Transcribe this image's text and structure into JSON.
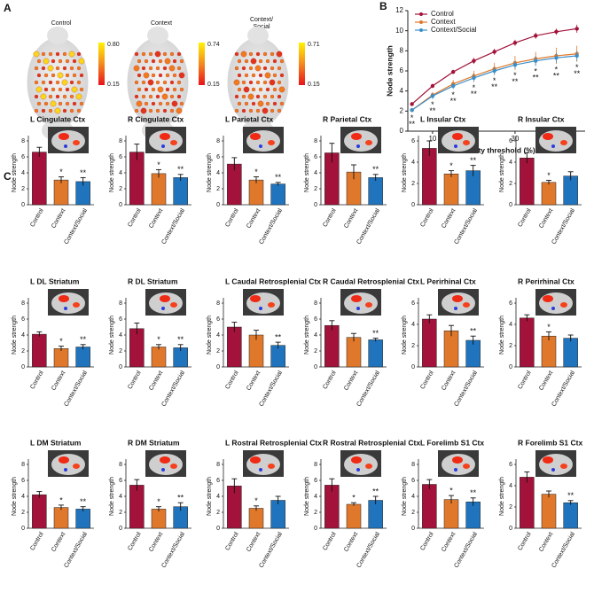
{
  "panel_labels": [
    "A",
    "B",
    "C"
  ],
  "brain_maps": [
    {
      "title_lines": [
        "Control"
      ],
      "max": "0.80",
      "min": "0.15"
    },
    {
      "title_lines": [
        "Context"
      ],
      "max": "0.74",
      "min": "0.15"
    },
    {
      "title_lines": [
        "Context/",
        "Social"
      ],
      "max": "0.71",
      "min": "0.15"
    }
  ],
  "chart_data": [
    {
      "type": "line",
      "xlabel": "Density threshold (%)",
      "ylabel": "Node strength",
      "x": [
        5,
        10,
        15,
        20,
        25,
        30,
        35,
        40,
        45
      ],
      "xlim": [
        4,
        47
      ],
      "xticks": [
        10,
        20,
        30,
        40
      ],
      "ylim": [
        0,
        12
      ],
      "yticks": [
        0,
        2,
        4,
        6,
        8,
        10,
        12
      ],
      "legend": "upper left",
      "series": [
        {
          "name": "Control",
          "color": "#a3123a",
          "values": [
            2.7,
            4.5,
            5.9,
            7.0,
            7.9,
            8.8,
            9.5,
            9.9,
            10.2
          ],
          "errors": [
            0.2,
            0.2,
            0.2,
            0.3,
            0.3,
            0.3,
            0.3,
            0.3,
            0.4
          ]
        },
        {
          "name": "Context",
          "color": "#e0782b",
          "values": [
            2.1,
            3.6,
            4.7,
            5.5,
            6.2,
            6.8,
            7.2,
            7.5,
            7.7
          ],
          "errors": [
            0.2,
            0.3,
            0.4,
            0.5,
            0.6,
            0.7,
            0.7,
            0.8,
            0.8
          ]
        },
        {
          "name": "Context/Social",
          "color": "#3a8fc8",
          "values": [
            2.1,
            3.5,
            4.5,
            5.3,
            6.0,
            6.6,
            7.0,
            7.3,
            7.5
          ],
          "errors": [
            0.2,
            0.3,
            0.3,
            0.4,
            0.4,
            0.4,
            0.5,
            0.5,
            0.5
          ]
        }
      ],
      "annotations": [
        {
          "x": 5,
          "lines": [
            "*",
            "**"
          ]
        },
        {
          "x": 10,
          "lines": [
            "*",
            "**"
          ]
        },
        {
          "x": 15,
          "lines": [
            "*",
            "**"
          ]
        },
        {
          "x": 20,
          "lines": [
            "*",
            "**"
          ]
        },
        {
          "x": 25,
          "lines": [
            "*",
            "**"
          ]
        },
        {
          "x": 30,
          "lines": [
            "*",
            "**"
          ]
        },
        {
          "x": 35,
          "lines": [
            "*",
            "**"
          ]
        },
        {
          "x": 40,
          "lines": [
            "*",
            "**"
          ]
        },
        {
          "x": 45,
          "lines": [
            "*",
            "**"
          ]
        }
      ]
    },
    {
      "type": "bar",
      "title": "L Cingulate Ctx",
      "ylabel": "Node strength",
      "categories": [
        "Control",
        "Context",
        "Context/Social"
      ],
      "colors": [
        "#a3123a",
        "#e0782b",
        "#1f74bd"
      ],
      "values": [
        6.6,
        3.1,
        2.9
      ],
      "errors": [
        0.6,
        0.4,
        0.5
      ],
      "annotations": [
        null,
        "*",
        "**"
      ],
      "ylim": [
        0,
        8
      ],
      "yticks": [
        0,
        2,
        4,
        6,
        8
      ]
    },
    {
      "type": "bar",
      "title": "R Cingulate Ctx",
      "ylabel": "Node strength",
      "categories": [
        "Control",
        "Context",
        "Context/Social"
      ],
      "colors": [
        "#a3123a",
        "#e0782b",
        "#1f74bd"
      ],
      "values": [
        6.6,
        3.9,
        3.4
      ],
      "errors": [
        1.0,
        0.5,
        0.4
      ],
      "annotations": [
        null,
        "*",
        "**"
      ],
      "ylim": [
        0,
        8
      ],
      "yticks": [
        0,
        2,
        4,
        6,
        8
      ]
    },
    {
      "type": "bar",
      "title": "L Parietal Ctx",
      "ylabel": "Node strength",
      "categories": [
        "Control",
        "Context",
        "Context/Social"
      ],
      "colors": [
        "#a3123a",
        "#e0782b",
        "#1f74bd"
      ],
      "values": [
        5.1,
        3.1,
        2.6
      ],
      "errors": [
        0.8,
        0.4,
        0.2
      ],
      "annotations": [
        null,
        "*",
        "**"
      ],
      "ylim": [
        0,
        8
      ],
      "yticks": [
        0,
        2,
        4,
        6,
        8
      ]
    },
    {
      "type": "bar",
      "title": "R Parietal Ctx",
      "ylabel": "Node strength",
      "categories": [
        "Control",
        "Context",
        "Context/Social"
      ],
      "colors": [
        "#a3123a",
        "#e0782b",
        "#1f74bd"
      ],
      "values": [
        6.5,
        4.1,
        3.4
      ],
      "errors": [
        1.2,
        0.9,
        0.4
      ],
      "annotations": [
        null,
        null,
        "**"
      ],
      "ylim": [
        0,
        8
      ],
      "yticks": [
        0,
        2,
        4,
        6,
        8
      ]
    },
    {
      "type": "bar",
      "title": "L Insular Ctx",
      "ylabel": "Node strength",
      "categories": [
        "Control",
        "Context",
        "Context/Social"
      ],
      "colors": [
        "#a3123a",
        "#e0782b",
        "#1f74bd"
      ],
      "values": [
        5.3,
        2.9,
        3.2
      ],
      "errors": [
        0.7,
        0.3,
        0.5
      ],
      "annotations": [
        null,
        "*",
        "**"
      ],
      "ylim": [
        0,
        6
      ],
      "yticks": [
        0,
        2,
        4,
        6
      ]
    },
    {
      "type": "bar",
      "title": "R Insular Ctx",
      "ylabel": "Node strength",
      "categories": [
        "Control",
        "Context",
        "Context/Social"
      ],
      "colors": [
        "#a3123a",
        "#e0782b",
        "#1f74bd"
      ],
      "values": [
        4.4,
        2.1,
        2.7
      ],
      "errors": [
        0.5,
        0.2,
        0.4
      ],
      "annotations": [
        null,
        "*",
        null
      ],
      "ylim": [
        0,
        6
      ],
      "yticks": [
        0,
        2,
        4,
        6
      ]
    },
    {
      "type": "bar",
      "title": "L DL Striatum",
      "ylabel": "Node strength",
      "categories": [
        "Control",
        "Context",
        "Context/Social"
      ],
      "colors": [
        "#a3123a",
        "#e0782b",
        "#1f74bd"
      ],
      "values": [
        4.1,
        2.3,
        2.5
      ],
      "errors": [
        0.3,
        0.3,
        0.3
      ],
      "annotations": [
        null,
        "*",
        "**"
      ],
      "ylim": [
        0,
        8
      ],
      "yticks": [
        0,
        2,
        4,
        6,
        8
      ]
    },
    {
      "type": "bar",
      "title": "R DL Striatum",
      "ylabel": "Node strength",
      "categories": [
        "Control",
        "Context",
        "Context/Social"
      ],
      "colors": [
        "#a3123a",
        "#e0782b",
        "#1f74bd"
      ],
      "values": [
        4.8,
        2.5,
        2.4
      ],
      "errors": [
        0.7,
        0.3,
        0.4
      ],
      "annotations": [
        null,
        "*",
        "**"
      ],
      "ylim": [
        0,
        8
      ],
      "yticks": [
        0,
        2,
        4,
        6,
        8
      ]
    },
    {
      "type": "bar",
      "title": "L Caudal Retrosplenial Ctx",
      "ylabel": "Node strength",
      "categories": [
        "Control",
        "Context",
        "Context/Social"
      ],
      "colors": [
        "#a3123a",
        "#e0782b",
        "#1f74bd"
      ],
      "values": [
        5.0,
        4.0,
        2.7
      ],
      "errors": [
        0.6,
        0.6,
        0.4
      ],
      "annotations": [
        null,
        null,
        "**"
      ],
      "ylim": [
        0,
        8
      ],
      "yticks": [
        0,
        2,
        4,
        6,
        8
      ]
    },
    {
      "type": "bar",
      "title": "R Caudal Retrosplenial Ctx",
      "ylabel": "Node strength",
      "categories": [
        "Control",
        "Context",
        "Context/Social"
      ],
      "colors": [
        "#a3123a",
        "#e0782b",
        "#1f74bd"
      ],
      "values": [
        5.2,
        3.7,
        3.4
      ],
      "errors": [
        0.6,
        0.5,
        0.2
      ],
      "annotations": [
        null,
        null,
        "**"
      ],
      "ylim": [
        0,
        8
      ],
      "yticks": [
        0,
        2,
        4,
        6,
        8
      ]
    },
    {
      "type": "bar",
      "title": "L Perirhinal Ctx",
      "ylabel": "Node strength",
      "categories": [
        "Control",
        "Context",
        "Context/Social"
      ],
      "colors": [
        "#a3123a",
        "#e0782b",
        "#1f74bd"
      ],
      "values": [
        4.5,
        3.4,
        2.5
      ],
      "errors": [
        0.4,
        0.5,
        0.4
      ],
      "annotations": [
        null,
        null,
        "**"
      ],
      "ylim": [
        0,
        6
      ],
      "yticks": [
        0,
        2,
        4,
        6
      ]
    },
    {
      "type": "bar",
      "title": "R Perirhinal Ctx",
      "ylabel": "Node strength",
      "categories": [
        "Control",
        "Context",
        "Context/Social"
      ],
      "colors": [
        "#a3123a",
        "#e0782b",
        "#1f74bd"
      ],
      "values": [
        4.6,
        2.9,
        2.7
      ],
      "errors": [
        0.3,
        0.4,
        0.3
      ],
      "annotations": [
        null,
        "*",
        null
      ],
      "ylim": [
        0,
        6
      ],
      "yticks": [
        0,
        2,
        4,
        6
      ]
    },
    {
      "type": "bar",
      "title": "L DM Striatum",
      "ylabel": "Node strength",
      "categories": [
        "Control",
        "Context",
        "Context/Social"
      ],
      "colors": [
        "#a3123a",
        "#e0782b",
        "#1f74bd"
      ],
      "values": [
        4.2,
        2.6,
        2.4
      ],
      "errors": [
        0.4,
        0.3,
        0.3
      ],
      "annotations": [
        null,
        "*",
        "**"
      ],
      "ylim": [
        0,
        8
      ],
      "yticks": [
        0,
        2,
        4,
        6,
        8
      ]
    },
    {
      "type": "bar",
      "title": "R DM Striatum",
      "ylabel": "Node strength",
      "categories": [
        "Control",
        "Context",
        "Context/Social"
      ],
      "colors": [
        "#a3123a",
        "#e0782b",
        "#1f74bd"
      ],
      "values": [
        5.4,
        2.4,
        2.7
      ],
      "errors": [
        0.7,
        0.3,
        0.5
      ],
      "annotations": [
        null,
        "*",
        "**"
      ],
      "ylim": [
        0,
        8
      ],
      "yticks": [
        0,
        2,
        4,
        6,
        8
      ]
    },
    {
      "type": "bar",
      "title": "L Rostral Retrosplenial Ctx",
      "ylabel": "Node strength",
      "categories": [
        "Control",
        "Context",
        "Context/Social"
      ],
      "colors": [
        "#a3123a",
        "#e0782b",
        "#1f74bd"
      ],
      "values": [
        5.3,
        2.5,
        3.5
      ],
      "errors": [
        0.9,
        0.3,
        0.5
      ],
      "annotations": [
        null,
        "*",
        null
      ],
      "ylim": [
        0,
        8
      ],
      "yticks": [
        0,
        2,
        4,
        6,
        8
      ]
    },
    {
      "type": "bar",
      "title": "R Rostral Retrosplenial Ctx",
      "ylabel": "Node strength",
      "categories": [
        "Control",
        "Context",
        "Context/Social"
      ],
      "colors": [
        "#a3123a",
        "#e0782b",
        "#1f74bd"
      ],
      "values": [
        5.4,
        3.0,
        3.5
      ],
      "errors": [
        0.8,
        0.2,
        0.5
      ],
      "annotations": [
        null,
        "*",
        "**"
      ],
      "ylim": [
        0,
        8
      ],
      "yticks": [
        0,
        2,
        4,
        6,
        8
      ]
    },
    {
      "type": "bar",
      "title": "L Forelimb S1 Ctx",
      "ylabel": "Node strength",
      "categories": [
        "Control",
        "Context",
        "Context/Social"
      ],
      "colors": [
        "#a3123a",
        "#e0782b",
        "#1f74bd"
      ],
      "values": [
        5.5,
        3.6,
        3.3
      ],
      "errors": [
        0.6,
        0.5,
        0.5
      ],
      "annotations": [
        null,
        "*",
        "**"
      ],
      "ylim": [
        0,
        8
      ],
      "yticks": [
        0,
        2,
        4,
        6,
        8
      ]
    },
    {
      "type": "bar",
      "title": "R Forelimb S1 Ctx",
      "ylabel": "Node strength",
      "categories": [
        "Control",
        "Context",
        "Context/Social"
      ],
      "colors": [
        "#a3123a",
        "#e0782b",
        "#1f74bd"
      ],
      "values": [
        4.8,
        3.2,
        2.4
      ],
      "errors": [
        0.5,
        0.3,
        0.2
      ],
      "annotations": [
        null,
        null,
        "**"
      ],
      "ylim": [
        0,
        6
      ],
      "yticks": [
        0,
        2,
        4,
        6
      ]
    }
  ]
}
